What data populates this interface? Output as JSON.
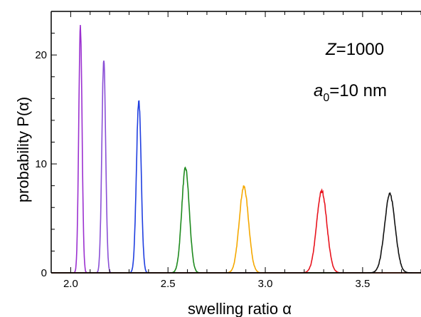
{
  "chart_data": {
    "type": "line",
    "title": "",
    "xlabel": "swelling ratio  α",
    "ylabel": "probability  P(α)",
    "xlim": [
      1.9,
      3.8
    ],
    "ylim": [
      0,
      24
    ],
    "x_ticks": [
      2.0,
      2.5,
      3.0,
      3.5
    ],
    "x_tick_labels": [
      "2.0",
      "2.5",
      "3.0",
      "3.5"
    ],
    "y_ticks": [
      0,
      10,
      20
    ],
    "y_tick_labels": [
      "0",
      "10",
      "20"
    ],
    "grid": false,
    "legend": "none",
    "annotations": [
      {
        "prefix": "Z",
        "suffix": "=1000"
      },
      {
        "prefix": "a",
        "sub": "0",
        "suffix": "=10 nm"
      }
    ],
    "series": [
      {
        "color": "#9b30d0",
        "center": 2.05,
        "peak": 22.6,
        "sigma": 0.0085
      },
      {
        "color": "#8a4fd6",
        "center": 2.17,
        "peak": 19.6,
        "sigma": 0.0098
      },
      {
        "color": "#1f3ee0",
        "center": 2.35,
        "peak": 15.8,
        "sigma": 0.0122
      },
      {
        "color": "#1e8a1e",
        "center": 2.59,
        "peak": 9.6,
        "sigma": 0.0195
      },
      {
        "color": "#f5a800",
        "center": 2.89,
        "peak": 7.9,
        "sigma": 0.024
      },
      {
        "color": "#e8141e",
        "center": 3.29,
        "peak": 7.5,
        "sigma": 0.0262
      },
      {
        "color": "#111111",
        "center": 3.64,
        "peak": 7.2,
        "sigma": 0.0272
      }
    ]
  }
}
